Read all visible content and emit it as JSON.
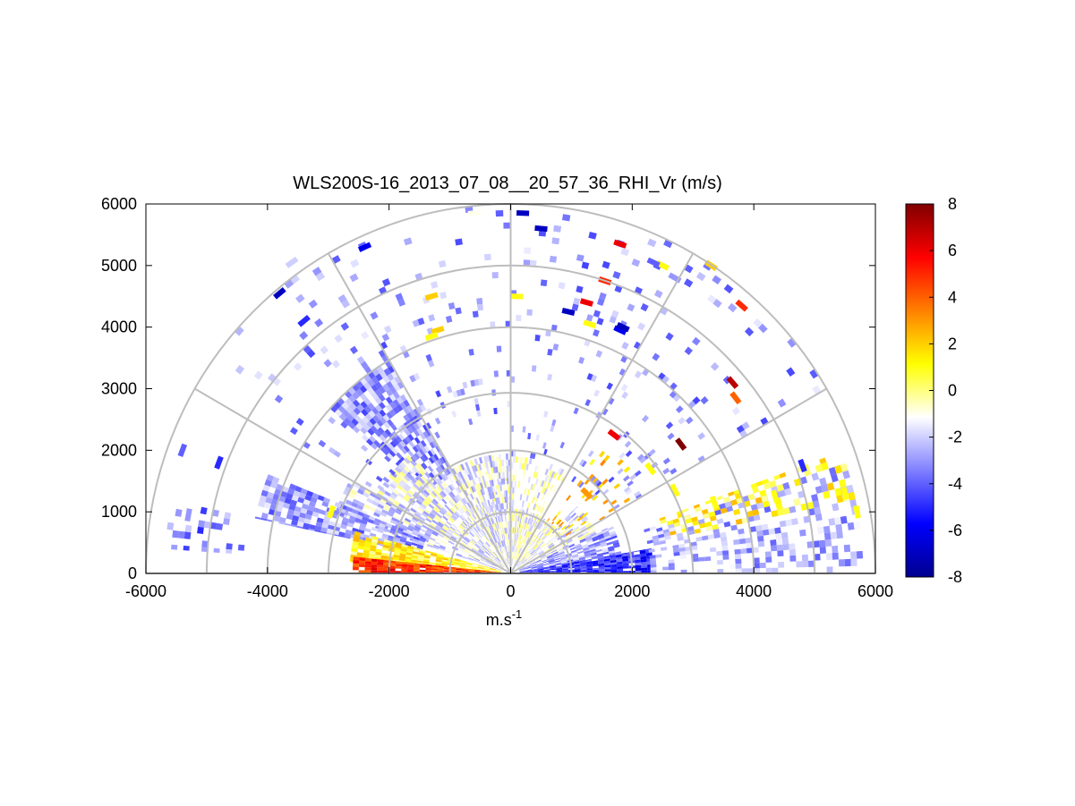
{
  "chart_data": {
    "type": "heatmap",
    "subtype": "polar RHI scan (half-disc, range rings and radial spokes)",
    "title": "WLS200S-16_2013_07_08__20_57_36_RHI_Vr (m/s)",
    "xlabel_base": "m.s",
    "xlabel_superscript": "-1",
    "ylabel": "",
    "xlim": [
      -6000,
      6000
    ],
    "ylim": [
      0,
      6000
    ],
    "x_ticks": [
      "-6000",
      "-4000",
      "-2000",
      "0",
      "2000",
      "4000",
      "6000"
    ],
    "y_ticks": [
      "0",
      "1000",
      "2000",
      "3000",
      "4000",
      "5000",
      "6000"
    ],
    "range_rings": [
      1000,
      2000,
      3000,
      4000,
      5000,
      6000
    ],
    "spoke_angles_deg": [
      0,
      30,
      60,
      90,
      120,
      150,
      180
    ],
    "grid": true,
    "colorbar": {
      "location": "right",
      "range": [
        -8,
        8
      ],
      "ticks": [
        "8",
        "6",
        "4",
        "2",
        "0",
        "-2",
        "-4",
        "-6",
        "-8"
      ],
      "colors_low_to_high": [
        "#00008f",
        "#0000ff",
        "#7f7fff",
        "#ffffff",
        "#ffff00",
        "#ff8000",
        "#ff0000",
        "#800000"
      ]
    },
    "sectors": [
      {
        "angle_from_deg": 0,
        "angle_to_deg": 10,
        "range_from": 150,
        "range_to": 2300,
        "value": -5.0,
        "density": 0.95
      },
      {
        "angle_from_deg": 0,
        "angle_to_deg": 18,
        "range_from": 2300,
        "range_to": 5800,
        "value": -2.5,
        "density": 0.45
      },
      {
        "angle_from_deg": 10,
        "angle_to_deg": 25,
        "range_from": 150,
        "range_to": 1800,
        "value": -3.0,
        "density": 0.75
      },
      {
        "angle_from_deg": 12,
        "angle_to_deg": 20,
        "range_from": 2600,
        "range_to": 5800,
        "value": 1.0,
        "density": 0.35
      },
      {
        "angle_from_deg": 25,
        "angle_to_deg": 45,
        "range_from": 150,
        "range_to": 1500,
        "value": -1.5,
        "density": 0.7
      },
      {
        "angle_from_deg": 30,
        "angle_to_deg": 55,
        "range_from": 1000,
        "range_to": 2600,
        "value": 2.0,
        "density": 0.12
      },
      {
        "angle_from_deg": 45,
        "angle_to_deg": 90,
        "range_from": 150,
        "range_to": 1000,
        "value": -1.0,
        "density": 0.8
      },
      {
        "angle_from_deg": 60,
        "angle_to_deg": 110,
        "range_from": 1000,
        "range_to": 1900,
        "value": -1.0,
        "density": 0.35
      },
      {
        "angle_from_deg": 90,
        "angle_to_deg": 130,
        "range_from": 150,
        "range_to": 1900,
        "value": -1.5,
        "density": 0.85
      },
      {
        "angle_from_deg": 120,
        "angle_to_deg": 138,
        "range_from": 1900,
        "range_to": 4000,
        "value": -3.0,
        "density": 0.75
      },
      {
        "angle_from_deg": 130,
        "angle_to_deg": 150,
        "range_from": 150,
        "range_to": 2500,
        "value": -1.5,
        "density": 0.8
      },
      {
        "angle_from_deg": 150,
        "angle_to_deg": 162,
        "range_from": 150,
        "range_to": 3000,
        "value": -1.8,
        "density": 0.7
      },
      {
        "angle_from_deg": 158,
        "angle_to_deg": 168,
        "range_from": 1500,
        "range_to": 4300,
        "value": -3.0,
        "density": 0.8
      },
      {
        "angle_from_deg": 165,
        "angle_to_deg": 176,
        "range_from": 150,
        "range_to": 2600,
        "value": 1.0,
        "density": 0.85
      },
      {
        "angle_from_deg": 174,
        "angle_to_deg": 180,
        "range_from": 100,
        "range_to": 2600,
        "value": 5.0,
        "density": 0.95
      },
      {
        "angle_from_deg": 168,
        "angle_to_deg": 176,
        "range_from": 4400,
        "range_to": 5700,
        "value": -3.5,
        "density": 0.3
      },
      {
        "angle_from_deg": 90,
        "angle_to_deg": 150,
        "range_from": 2500,
        "range_to": 6000,
        "value": -3.0,
        "density": 0.07
      },
      {
        "angle_from_deg": 30,
        "angle_to_deg": 90,
        "range_from": 1800,
        "range_to": 6000,
        "value": -3.0,
        "density": 0.07
      }
    ],
    "points": [
      {
        "x": 1800,
        "y": 5350,
        "value": 6.0
      },
      {
        "x": 1550,
        "y": 4750,
        "value": 5.0
      },
      {
        "x": 1250,
        "y": 4400,
        "value": 6.0
      },
      {
        "x": 3800,
        "y": 4350,
        "value": 5.0
      },
      {
        "x": 3650,
        "y": 3100,
        "value": 7.0
      },
      {
        "x": 3700,
        "y": 2850,
        "value": 4.0
      },
      {
        "x": 2800,
        "y": 2100,
        "value": 8.0
      },
      {
        "x": 1700,
        "y": 2250,
        "value": 6.0
      },
      {
        "x": 3300,
        "y": 5000,
        "value": 2.0
      },
      {
        "x": 2500,
        "y": 5000,
        "value": 1.0
      },
      {
        "x": -1200,
        "y": 3950,
        "value": 2.0
      },
      {
        "x": -1300,
        "y": 4500,
        "value": 2.0
      },
      {
        "x": 100,
        "y": 4500,
        "value": 1.0
      },
      {
        "x": 1300,
        "y": 4050,
        "value": 1.0
      },
      {
        "x": 200,
        "y": 5850,
        "value": -7.0
      },
      {
        "x": 500,
        "y": 5600,
        "value": -7.0
      },
      {
        "x": -3800,
        "y": 4550,
        "value": -7.0
      },
      {
        "x": -3400,
        "y": 4100,
        "value": -5.0
      },
      {
        "x": -2400,
        "y": 5300,
        "value": -6.0
      },
      {
        "x": -3600,
        "y": 5050,
        "value": -2.0
      },
      {
        "x": -600,
        "y": 5850,
        "value": -1.0
      },
      {
        "x": 1800,
        "y": 3950,
        "value": -6.0
      },
      {
        "x": 1850,
        "y": 4000,
        "value": -7.0
      },
      {
        "x": 2700,
        "y": 4800,
        "value": -3.0
      },
      {
        "x": 2350,
        "y": 5050,
        "value": -4.0
      },
      {
        "x": -5400,
        "y": 2000,
        "value": -4.0
      },
      {
        "x": -4800,
        "y": 1800,
        "value": -5.0
      },
      {
        "x": -5300,
        "y": 950,
        "value": -3.0
      },
      {
        "x": 4800,
        "y": 1750,
        "value": -5.0
      },
      {
        "x": 5500,
        "y": 1300,
        "value": 1.0
      },
      {
        "x": 5700,
        "y": 1000,
        "value": 1.0
      },
      {
        "x": 4350,
        "y": 1250,
        "value": 1.0
      },
      {
        "x": 3350,
        "y": 1150,
        "value": 1.0
      },
      {
        "x": 2700,
        "y": 1350,
        "value": 1.0
      },
      {
        "x": 2300,
        "y": 1700,
        "value": 1.0
      },
      {
        "x": 1250,
        "y": 1300,
        "value": 3.0
      },
      {
        "x": -2950,
        "y": 1000,
        "value": 1.0
      },
      {
        "x": -1300,
        "y": 3850,
        "value": 1.0
      },
      {
        "x": 950,
        "y": 4250,
        "value": -7.0
      }
    ]
  }
}
